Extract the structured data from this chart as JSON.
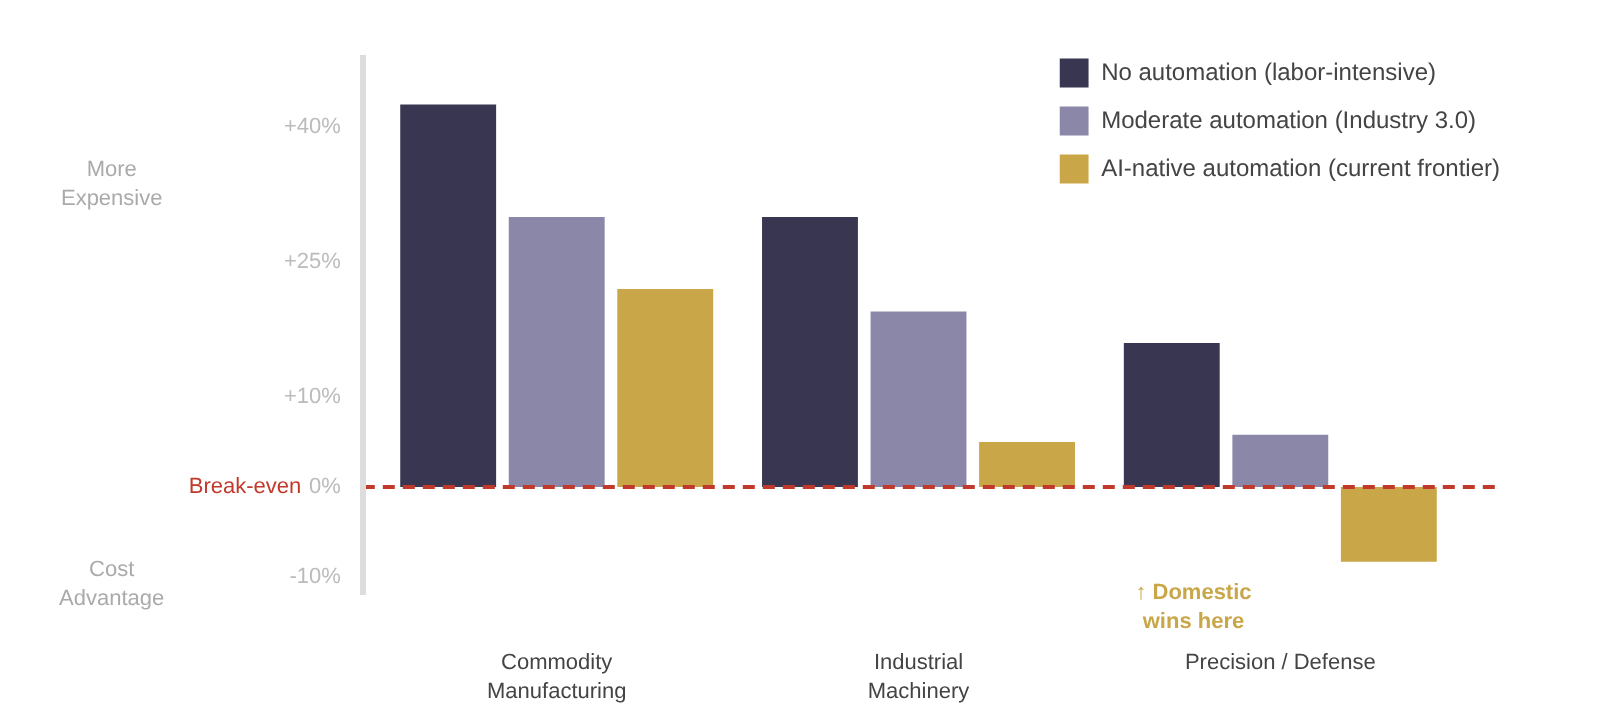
{
  "chart_data": {
    "type": "bar",
    "categories": [
      "Commodity\nManufacturing",
      "Industrial\nMachinery",
      "Precision / Defense"
    ],
    "series": [
      {
        "name": "No automation (labor-intensive)",
        "color": "#383650",
        "values": [
          42.5,
          30,
          16
        ]
      },
      {
        "name": "Moderate automation (Industry 3.0)",
        "color": "#8b87a8",
        "values": [
          30,
          19.5,
          5.8
        ]
      },
      {
        "name": "AI-native automation (current frontier)",
        "color": "#c9a648",
        "values": [
          22,
          5,
          -8.3
        ]
      }
    ],
    "ylim": [
      -12,
      48
    ],
    "yticks": [
      {
        "value": 40,
        "label": "+40%"
      },
      {
        "value": 25,
        "label": "+25%"
      },
      {
        "value": 10,
        "label": "+10%"
      },
      {
        "value": 0,
        "label": "0%"
      },
      {
        "value": -10,
        "label": "-10%"
      }
    ],
    "ref_lines": [
      {
        "axis": "y",
        "value": 0,
        "label": "Break-even",
        "color": "#c0392b",
        "line_style": "dashed"
      }
    ],
    "annotations": [
      "More\nExpensive",
      "Cost\nAdvantage",
      "↑ Domestic\nwins here"
    ],
    "grid": false,
    "legend": "top right"
  }
}
